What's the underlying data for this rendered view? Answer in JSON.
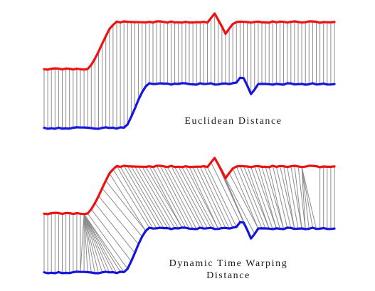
{
  "panels": [
    {
      "label": "Euclidean Distance",
      "alignment": "euclidean"
    },
    {
      "label_line1": "Dynamic Time Warping",
      "label_line2": "Distance",
      "alignment": "dtw"
    }
  ],
  "colors": {
    "series_top": "#ee1111",
    "series_bottom": "#1515dd",
    "connector": "#8c8c8c",
    "background": "#ffffff"
  }
}
